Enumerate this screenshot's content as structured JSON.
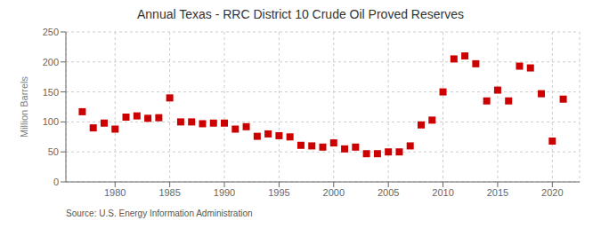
{
  "chart_data": {
    "type": "scatter",
    "title": "Annual Texas - RRC District 10 Crude Oil Proved Reserves",
    "ylabel": "Million Barrels",
    "annotations": [
      "Source: U.S. Energy Information Administration"
    ],
    "x": [
      1977,
      1978,
      1979,
      1980,
      1981,
      1982,
      1983,
      1984,
      1985,
      1986,
      1987,
      1988,
      1989,
      1990,
      1991,
      1992,
      1993,
      1994,
      1995,
      1996,
      1997,
      1998,
      1999,
      2000,
      2001,
      2002,
      2003,
      2004,
      2005,
      2006,
      2007,
      2008,
      2009,
      2010,
      2011,
      2012,
      2013,
      2014,
      2015,
      2016,
      2017,
      2018,
      2019,
      2020,
      2021
    ],
    "values": [
      117,
      90,
      98,
      88,
      108,
      110,
      106,
      107,
      140,
      100,
      100,
      97,
      98,
      98,
      88,
      92,
      76,
      80,
      77,
      75,
      61,
      60,
      58,
      65,
      55,
      58,
      47,
      47,
      50,
      50,
      60,
      95,
      103,
      150,
      205,
      210,
      197,
      135,
      153,
      135,
      193,
      190,
      147,
      68,
      138
    ],
    "color": "#CC0000",
    "marker": "square",
    "xlim": [
      1975.5,
      2022.5
    ],
    "ylim": [
      0,
      250
    ],
    "xticks": [
      1980,
      1985,
      1990,
      1995,
      2000,
      2005,
      2010,
      2015,
      2020
    ],
    "yticks": [
      0,
      50,
      100,
      150,
      200,
      250
    ],
    "grid": true
  }
}
